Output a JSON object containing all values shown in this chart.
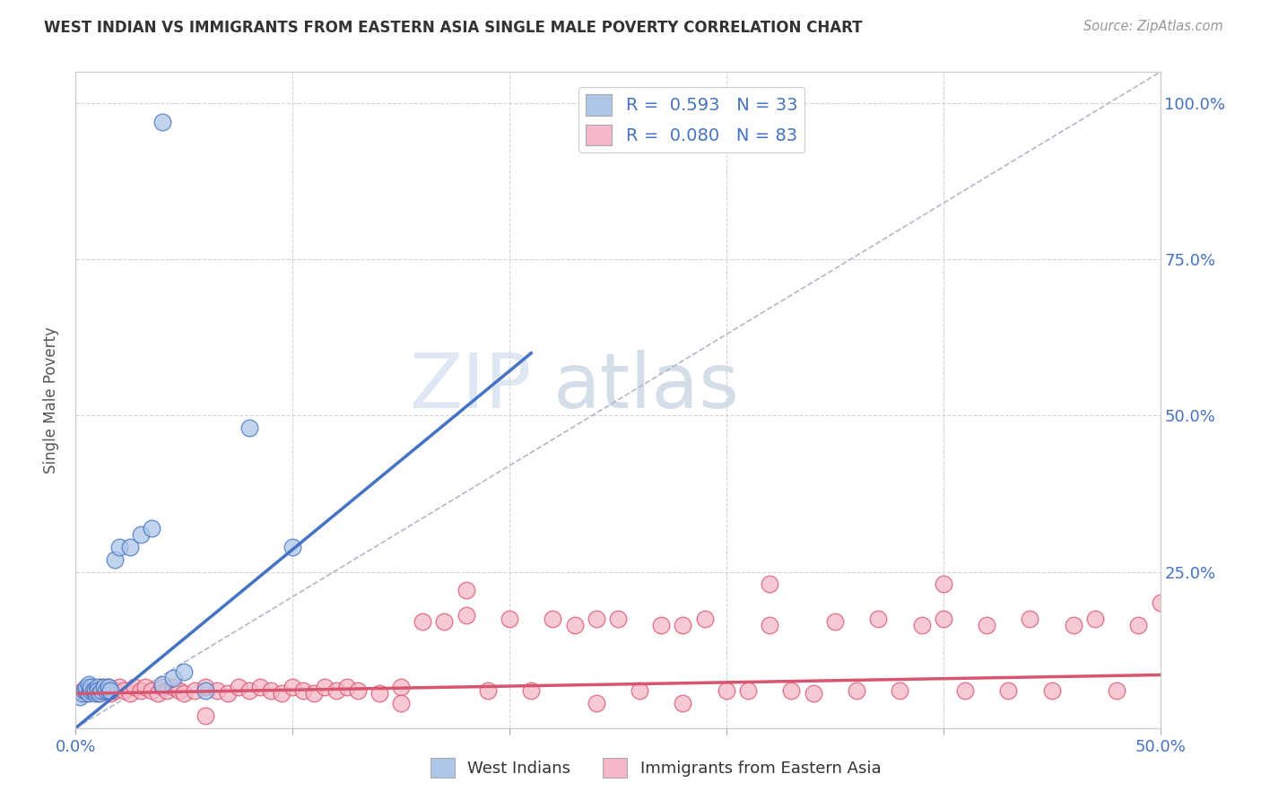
{
  "title": "WEST INDIAN VS IMMIGRANTS FROM EASTERN ASIA SINGLE MALE POVERTY CORRELATION CHART",
  "source": "Source: ZipAtlas.com",
  "ylabel": "Single Male Poverty",
  "xlim": [
    0.0,
    0.5
  ],
  "ylim": [
    0.0,
    1.05
  ],
  "blue_color": "#aec6e8",
  "blue_line_color": "#4472c4",
  "pink_color": "#f5b8c8",
  "pink_line_color": "#d9546e",
  "diagonal_color": "#b0b8c8",
  "R_blue": 0.593,
  "N_blue": 33,
  "R_pink": 0.08,
  "N_pink": 83,
  "legend_label_blue": "West Indians",
  "legend_label_pink": "Immigrants from Eastern Asia",
  "watermark_zip": "ZIP",
  "watermark_atlas": "atlas",
  "blue_scatter_x": [
    0.002,
    0.003,
    0.004,
    0.005,
    0.005,
    0.006,
    0.006,
    0.007,
    0.007,
    0.008,
    0.009,
    0.009,
    0.01,
    0.01,
    0.011,
    0.012,
    0.013,
    0.014,
    0.015,
    0.015,
    0.016,
    0.018,
    0.02,
    0.025,
    0.03,
    0.035,
    0.04,
    0.045,
    0.05,
    0.06,
    0.08,
    0.1,
    0.04
  ],
  "blue_scatter_y": [
    0.05,
    0.055,
    0.06,
    0.06,
    0.065,
    0.055,
    0.07,
    0.06,
    0.065,
    0.06,
    0.055,
    0.06,
    0.065,
    0.06,
    0.055,
    0.06,
    0.065,
    0.06,
    0.06,
    0.065,
    0.06,
    0.27,
    0.29,
    0.29,
    0.31,
    0.32,
    0.07,
    0.08,
    0.09,
    0.06,
    0.48,
    0.29,
    0.97
  ],
  "pink_scatter_x": [
    0.003,
    0.005,
    0.007,
    0.008,
    0.01,
    0.012,
    0.013,
    0.015,
    0.016,
    0.018,
    0.02,
    0.022,
    0.025,
    0.027,
    0.03,
    0.032,
    0.035,
    0.038,
    0.04,
    0.042,
    0.045,
    0.048,
    0.05,
    0.055,
    0.06,
    0.065,
    0.07,
    0.075,
    0.08,
    0.085,
    0.09,
    0.095,
    0.1,
    0.105,
    0.11,
    0.115,
    0.12,
    0.125,
    0.13,
    0.14,
    0.15,
    0.16,
    0.17,
    0.18,
    0.19,
    0.2,
    0.21,
    0.22,
    0.23,
    0.24,
    0.25,
    0.26,
    0.27,
    0.28,
    0.29,
    0.3,
    0.31,
    0.32,
    0.33,
    0.34,
    0.35,
    0.36,
    0.37,
    0.38,
    0.39,
    0.4,
    0.41,
    0.42,
    0.43,
    0.44,
    0.45,
    0.46,
    0.47,
    0.48,
    0.49,
    0.5,
    0.18,
    0.32,
    0.24,
    0.4,
    0.15,
    0.28,
    0.06
  ],
  "pink_scatter_y": [
    0.06,
    0.055,
    0.065,
    0.06,
    0.055,
    0.065,
    0.06,
    0.065,
    0.055,
    0.06,
    0.065,
    0.06,
    0.055,
    0.065,
    0.06,
    0.065,
    0.06,
    0.055,
    0.065,
    0.06,
    0.065,
    0.06,
    0.055,
    0.06,
    0.065,
    0.06,
    0.055,
    0.065,
    0.06,
    0.065,
    0.06,
    0.055,
    0.065,
    0.06,
    0.055,
    0.065,
    0.06,
    0.065,
    0.06,
    0.055,
    0.065,
    0.17,
    0.17,
    0.18,
    0.06,
    0.175,
    0.06,
    0.175,
    0.165,
    0.175,
    0.175,
    0.06,
    0.165,
    0.165,
    0.175,
    0.06,
    0.06,
    0.165,
    0.06,
    0.055,
    0.17,
    0.06,
    0.175,
    0.06,
    0.165,
    0.175,
    0.06,
    0.165,
    0.06,
    0.175,
    0.06,
    0.165,
    0.175,
    0.06,
    0.165,
    0.2,
    0.22,
    0.23,
    0.04,
    0.23,
    0.04,
    0.04,
    0.02
  ],
  "blue_line_x": [
    0.0,
    0.21
  ],
  "blue_line_y": [
    0.0,
    0.6
  ],
  "pink_line_x": [
    0.0,
    0.5
  ],
  "pink_line_y": [
    0.055,
    0.085
  ]
}
